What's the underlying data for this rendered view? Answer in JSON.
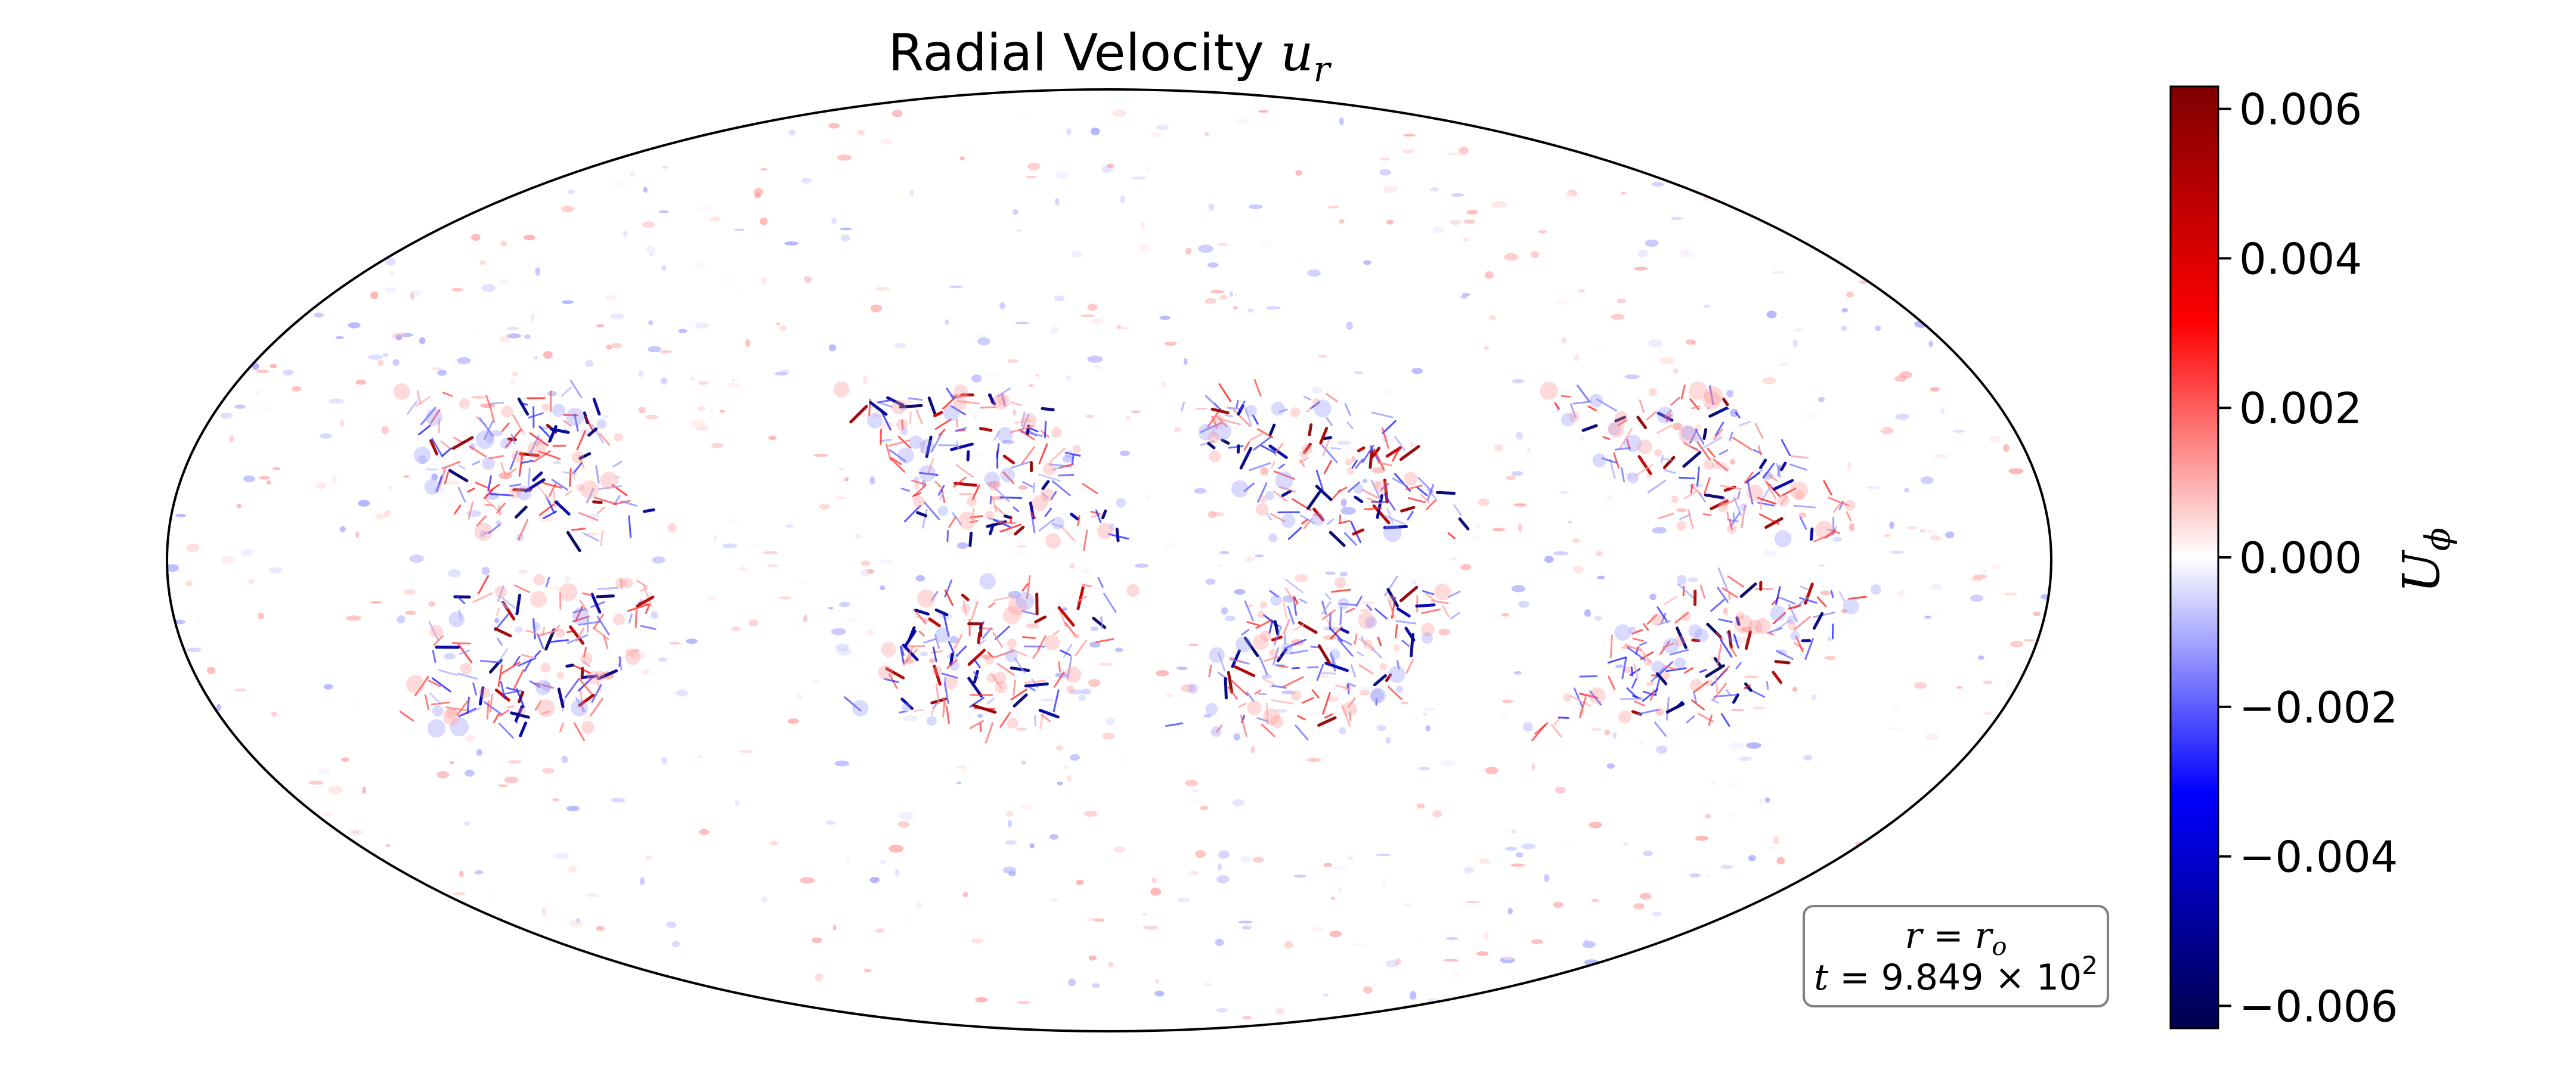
{
  "chart_data": {
    "type": "heatmap",
    "projection": "mollweide",
    "title": {
      "prefix": "Radial Velocity ",
      "var": "u",
      "sub": "r"
    },
    "colormap": "seismic",
    "colorbar": {
      "label_var": "U",
      "label_sub": "ϕ",
      "vmin": -0.0063,
      "vmax": 0.0063,
      "ticks": [
        0.006,
        0.004,
        0.002,
        0.0,
        -0.002,
        -0.004,
        -0.006
      ],
      "tick_labels": [
        "0.006",
        "0.004",
        "0.002",
        "0.000",
        "−0.002",
        "−0.004",
        "−0.006"
      ],
      "placement": "right"
    },
    "annotation": {
      "line1": {
        "var": "r",
        "eq": " = ",
        "rhs_var": "r",
        "rhs_sub": "o"
      },
      "line2": {
        "var": "t",
        "text": " = 9.849 × 10",
        "exp": "2"
      },
      "placement": "bottom-right"
    },
    "structures": {
      "description": "four chevron-shaped convective clusters near the equator",
      "cluster_longitudes_deg": [
        -100,
        -10,
        55,
        130
      ],
      "latitude_band_deg": [
        -25,
        25
      ],
      "peak_abs_value": 0.006
    },
    "colors": {
      "dark_blue": "#00004c",
      "blue": "#0000ff",
      "white": "#ffffff",
      "red": "#ff0000",
      "dark_red": "#7f0000"
    }
  }
}
